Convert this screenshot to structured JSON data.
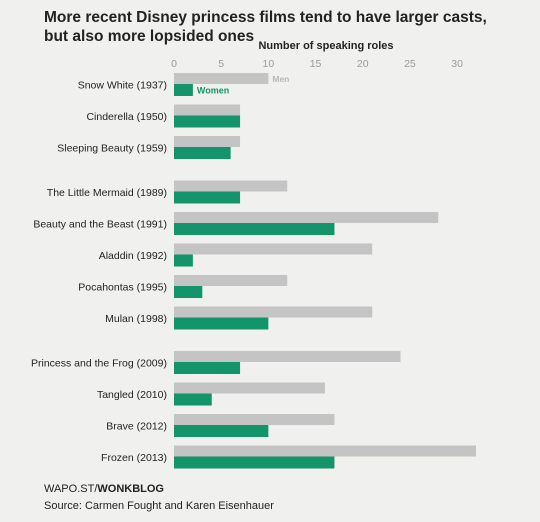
{
  "title": "More recent Disney princess films tend to have larger casts, but also more lopsided ones",
  "footer": {
    "credit_prefix": "WAPO.ST/",
    "credit_bold": "WONKBLOG",
    "source": "Source: Carmen Fought and Karen Eisenhauer"
  },
  "colors": {
    "men": "#c4c4c4",
    "women": "#14946a",
    "men_label": "#b8b8b8",
    "women_label": "#14946a",
    "axis_text": "#9a9a9a",
    "label_text": "#222222"
  },
  "chart_data": {
    "type": "bar",
    "orientation": "horizontal",
    "title": "Number of speaking roles",
    "xlim": [
      0,
      32
    ],
    "ticks": [
      0,
      5,
      10,
      15,
      20,
      25,
      30
    ],
    "axis_position": "top",
    "grid": false,
    "legend_placement": "inline on first row",
    "categories": [
      "Snow White (1937)",
      "Cinderella (1950)",
      "Sleeping Beauty (1959)",
      "The Little Mermaid (1989)",
      "Beauty and the Beast (1991)",
      "Aladdin (1992)",
      "Pocahontas (1995)",
      "Mulan (1998)",
      "Princess and the Frog (2009)",
      "Tangled (2010)",
      "Brave (2012)",
      "Frozen (2013)"
    ],
    "groups": [
      3,
      5,
      4
    ],
    "series": [
      {
        "name": "Men",
        "values": [
          10,
          7,
          7,
          12,
          28,
          21,
          12,
          21,
          24,
          16,
          17,
          32
        ]
      },
      {
        "name": "Women",
        "values": [
          2,
          7,
          6,
          7,
          17,
          2,
          3,
          10,
          7,
          4,
          10,
          17
        ]
      }
    ]
  }
}
